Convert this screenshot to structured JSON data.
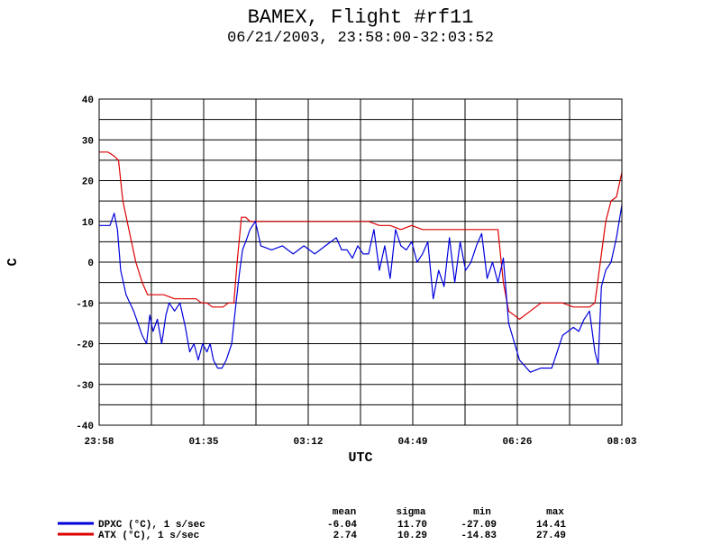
{
  "chart_data": {
    "type": "line",
    "title": "BAMEX, Flight #rf11",
    "subtitle": "06/21/2003, 23:58:00-32:03:52",
    "xlabel": "UTC",
    "ylabel": "C",
    "x_tick_labels": [
      "23:58",
      "01:35",
      "03:12",
      "04:49",
      "06:26",
      "08:03"
    ],
    "y_ticks": [
      40,
      30,
      20,
      10,
      0,
      -10,
      -20,
      -30,
      -40
    ],
    "ylim": [
      -40,
      40
    ],
    "xlim_minutes": [
      0,
      485
    ],
    "grid": true,
    "series": [
      {
        "name": "DPXC (°C), 1 s/sec",
        "color": "#0000dd",
        "x": [
          0,
          10,
          14,
          17,
          20,
          25,
          32,
          40,
          44,
          47,
          50,
          54,
          58,
          62,
          65,
          70,
          75,
          80,
          84,
          88,
          92,
          96,
          100,
          103,
          106,
          110,
          114,
          118,
          123,
          127,
          130,
          133,
          136,
          140,
          145,
          150,
          160,
          170,
          180,
          190,
          200,
          210,
          220,
          225,
          230,
          235,
          240,
          245,
          250,
          255,
          260,
          265,
          270,
          275,
          280,
          285,
          290,
          295,
          300,
          305,
          310,
          315,
          320,
          325,
          330,
          335,
          340,
          345,
          350,
          355,
          360,
          365,
          370,
          375,
          380,
          390,
          400,
          410,
          420,
          430,
          440,
          445,
          450,
          455,
          460,
          463,
          466,
          470,
          475,
          480,
          485
        ],
        "y": [
          9,
          9,
          12,
          8,
          -2,
          -8,
          -12,
          -18,
          -20,
          -13,
          -17,
          -14,
          -20,
          -13,
          -10,
          -12,
          -10,
          -16,
          -22,
          -20,
          -24,
          -20,
          -22,
          -20,
          -24,
          -26,
          -26,
          -24,
          -20,
          -10,
          -3,
          3,
          5,
          8,
          10,
          4,
          3,
          4,
          2,
          4,
          2,
          4,
          6,
          3,
          3,
          1,
          4,
          2,
          2,
          8,
          -2,
          4,
          -4,
          8,
          4,
          3,
          5,
          0,
          2,
          5,
          -9,
          -2,
          -6,
          6,
          -5,
          5,
          -2,
          0,
          4,
          7,
          -4,
          0,
          -5,
          1,
          -15,
          -24,
          -27,
          -26,
          -26,
          -18,
          -16,
          -17,
          -14,
          -12,
          -22,
          -25,
          -6,
          -2,
          0,
          6,
          14
        ]
      },
      {
        "name": "ATX (°C), 1 s/sec",
        "color": "#dd0000",
        "x": [
          0,
          8,
          14,
          18,
          22,
          26,
          30,
          34,
          40,
          45,
          50,
          60,
          70,
          80,
          90,
          95,
          100,
          105,
          110,
          115,
          120,
          125,
          128,
          132,
          136,
          140,
          150,
          160,
          170,
          180,
          190,
          200,
          210,
          220,
          230,
          240,
          250,
          260,
          270,
          280,
          290,
          300,
          310,
          320,
          330,
          340,
          350,
          360,
          365,
          370,
          375,
          380,
          390,
          400,
          410,
          420,
          430,
          440,
          450,
          455,
          460,
          465,
          470,
          475,
          480,
          485
        ],
        "y": [
          27,
          27,
          26,
          25,
          15,
          10,
          5,
          0,
          -5,
          -8,
          -8,
          -8,
          -9,
          -9,
          -9,
          -10,
          -10,
          -11,
          -11,
          -11,
          -10,
          -10,
          0,
          11,
          11,
          10,
          10,
          10,
          10,
          10,
          10,
          10,
          10,
          10,
          10,
          10,
          10,
          9,
          9,
          8,
          9,
          8,
          8,
          8,
          8,
          8,
          8,
          8,
          8,
          8,
          -5,
          -12,
          -14,
          -12,
          -10,
          -10,
          -10,
          -11,
          -11,
          -11,
          -10,
          0,
          10,
          15,
          16,
          22
        ]
      }
    ]
  },
  "legend": {
    "headers": {
      "mean": "mean",
      "sigma": "sigma",
      "min": "min",
      "max": "max"
    },
    "rows": [
      {
        "label": "DPXC (°C), 1 s/sec",
        "color": "#0000dd",
        "mean": "-6.04",
        "sigma": "11.70",
        "min": "-27.09",
        "max": "14.41"
      },
      {
        "label": "ATX (°C), 1 s/sec",
        "color": "#dd0000",
        "mean": "2.74",
        "sigma": "10.29",
        "min": "-14.83",
        "max": "27.49"
      }
    ]
  }
}
